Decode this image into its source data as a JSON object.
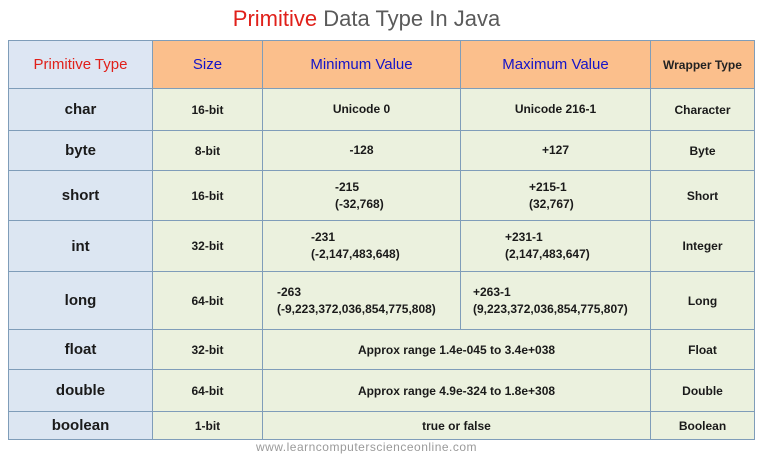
{
  "title": {
    "accent": "Primitive",
    "rest": " Data Type In Java"
  },
  "headers": {
    "primitive_type": "Primitive Type",
    "size": "Size",
    "minimum_value": "Minimum Value",
    "maximum_value": "Maximum Value",
    "wrapper_type": "Wrapper Type"
  },
  "rows": [
    {
      "type": "char",
      "size": "16-bit",
      "min": [
        "Unicode 0"
      ],
      "max": [
        "Unicode 216-1"
      ],
      "wrapper": "Character"
    },
    {
      "type": "byte",
      "size": "8-bit",
      "min": [
        "-128"
      ],
      "max": [
        "+127"
      ],
      "wrapper": "Byte"
    },
    {
      "type": "short",
      "size": "16-bit",
      "min": [
        "-215",
        "(-32,768)"
      ],
      "max": [
        "+215-1",
        "(32,767)"
      ],
      "wrapper": "Short"
    },
    {
      "type": "int",
      "size": "32-bit",
      "min": [
        "-231",
        "(-2,147,483,648)"
      ],
      "max": [
        "+231-1",
        "(2,147,483,647)"
      ],
      "wrapper": "Integer"
    },
    {
      "type": "long",
      "size": "64-bit",
      "min": [
        "-263",
        "(-9,223,372,036,854,775,808)"
      ],
      "max": [
        "+263-1",
        "(9,223,372,036,854,775,807)"
      ],
      "wrapper": "Long"
    },
    {
      "type": "float",
      "size": "32-bit",
      "range": "Approx range 1.4e-045 to 3.4e+038",
      "wrapper": "Float"
    },
    {
      "type": "double",
      "size": "64-bit",
      "range": "Approx range 4.9e-324 to 1.8e+308",
      "wrapper": "Double"
    },
    {
      "type": "boolean",
      "size": "1-bit",
      "range": "true or false",
      "wrapper": "Boolean"
    }
  ],
  "footer": "www.learncomputerscienceonline.com"
}
